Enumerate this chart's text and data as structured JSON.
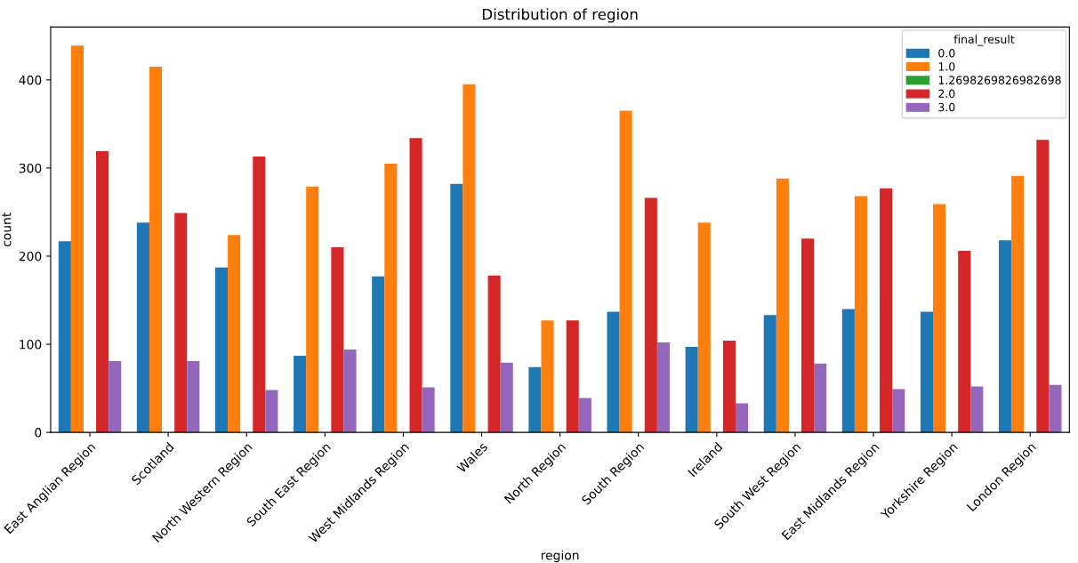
{
  "chart_data": {
    "type": "bar",
    "title": "Distribution of region",
    "xlabel": "region",
    "ylabel": "count",
    "legend_title": "final_result",
    "categories": [
      "East Anglian Region",
      "Scotland",
      "North Western Region",
      "South East Region",
      "West Midlands Region",
      "Wales",
      "North Region",
      "South Region",
      "Ireland",
      "South West Region",
      "East Midlands Region",
      "Yorkshire Region",
      "London Region"
    ],
    "series": [
      {
        "name": "0.0",
        "color": "#1f77b4",
        "values": [
          217,
          238,
          187,
          87,
          177,
          282,
          74,
          137,
          97,
          133,
          140,
          137,
          218
        ]
      },
      {
        "name": "1.0",
        "color": "#ff7f0e",
        "values": [
          439,
          415,
          224,
          279,
          305,
          395,
          127,
          365,
          238,
          288,
          268,
          259,
          291
        ]
      },
      {
        "name": "1.2698269826982698",
        "color": "#2ca02c",
        "values": [
          0,
          0,
          0,
          0,
          0,
          0,
          0,
          0,
          0,
          0,
          0,
          0,
          0
        ]
      },
      {
        "name": "2.0",
        "color": "#d62728",
        "values": [
          319,
          249,
          313,
          210,
          334,
          178,
          127,
          266,
          104,
          220,
          277,
          206,
          332
        ]
      },
      {
        "name": "3.0",
        "color": "#9467bd",
        "values": [
          81,
          81,
          48,
          94,
          51,
          79,
          39,
          102,
          33,
          78,
          49,
          52,
          54
        ]
      }
    ],
    "ylim": [
      0,
      460
    ],
    "yticks": [
      0,
      100,
      200,
      300,
      400
    ],
    "grid": false,
    "legend": "top right"
  }
}
